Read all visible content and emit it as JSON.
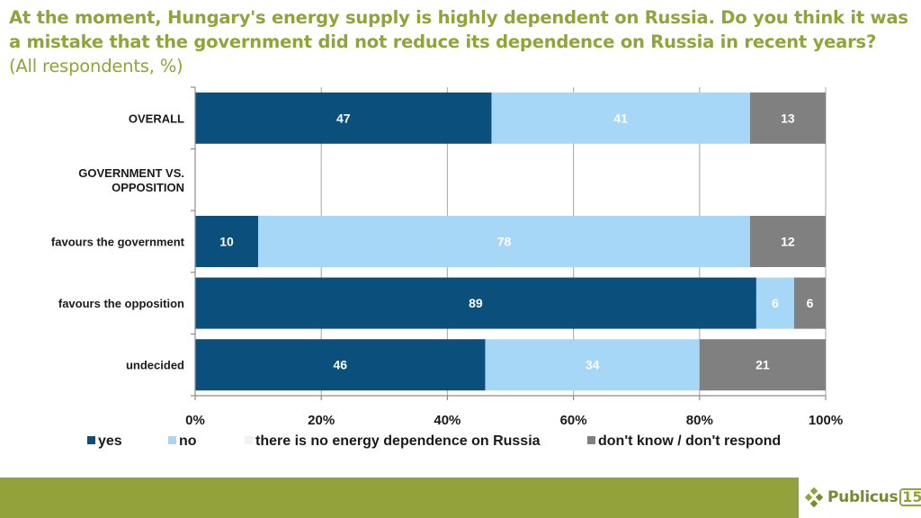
{
  "title": {
    "main": "At the moment, Hungary's energy supply is highly dependent on Russia. Do you think it was a mistake that the government did not reduce its dependence on Russia in recent years?",
    "sub": "(All respondents, %)"
  },
  "chart_data": {
    "type": "bar",
    "orientation": "horizontal-stacked-100",
    "title": "At the moment, Hungary's energy supply is highly dependent on Russia. Do you think it was a mistake that the government did not reduce its dependence on Russia in recent years? (All respondents, %)",
    "xlabel": "",
    "ylabel": "",
    "xlim": [
      0,
      100
    ],
    "x_ticks": [
      "0%",
      "20%",
      "40%",
      "60%",
      "80%",
      "100%"
    ],
    "grid": true,
    "legend_position": "bottom",
    "categories": [
      "OVERALL",
      "GOVERNMENT VS. OPPOSITION",
      "favours the government",
      "favours the opposition",
      "undecided"
    ],
    "category_bold_caps": [
      true,
      true,
      false,
      false,
      false
    ],
    "series": [
      {
        "name": "yes",
        "color": "#0b4f7c",
        "values": [
          47,
          null,
          10,
          89,
          46
        ]
      },
      {
        "name": "no",
        "color": "#a6d7f7",
        "values": [
          41,
          null,
          78,
          6,
          34
        ]
      },
      {
        "name": "there is no energy dependence on Russia",
        "color": "#f2f2f2",
        "values": [
          0,
          null,
          0,
          0,
          0
        ]
      },
      {
        "name": "don't know / don't respond",
        "color": "#808080",
        "values": [
          13,
          null,
          12,
          6,
          21
        ]
      }
    ]
  },
  "brand": {
    "name": "Publicus",
    "badge": "15",
    "band_color": "#94a23c"
  }
}
